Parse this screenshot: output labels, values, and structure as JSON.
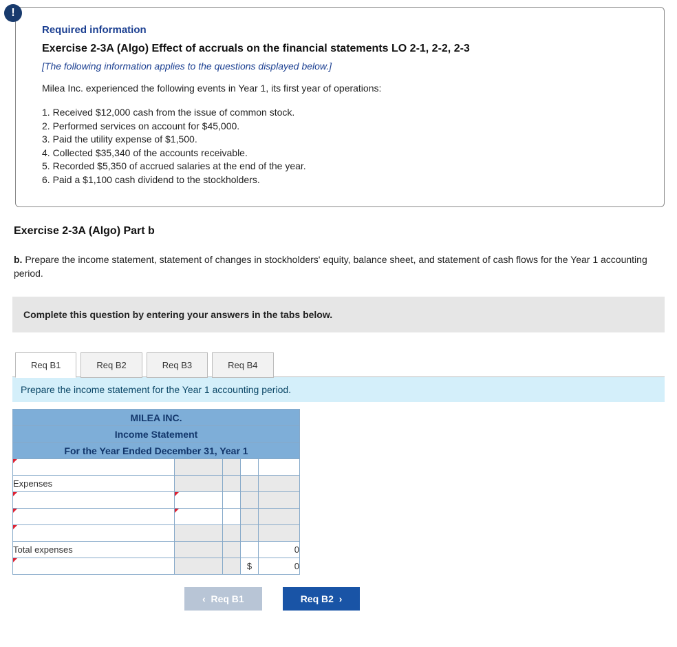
{
  "badge_char": "!",
  "required_info_label": "Required information",
  "exercise_title": "Exercise 2-3A (Algo) Effect of accruals on the financial statements LO 2-1, 2-2, 2-3",
  "italic_note": "[The following information applies to the questions displayed below.]",
  "intro_text": "Milea Inc. experienced the following events in Year 1, its first year of operations:",
  "events": [
    "1. Received $12,000 cash from the issue of common stock.",
    "2. Performed services on account for $45,000.",
    "3. Paid the utility expense of $1,500.",
    "4. Collected $35,340 of the accounts receivable.",
    "5. Recorded $5,350 of accrued salaries at the end of the year.",
    "6. Paid a $1,100 cash dividend to the stockholders."
  ],
  "part_title": "Exercise 2-3A (Algo) Part b",
  "part_desc_prefix": "b. ",
  "part_desc": "Prepare the income statement, statement of changes in stockholders' equity, balance sheet, and statement of cash flows for the Year 1 accounting period.",
  "instruction_bar": "Complete this question by entering your answers in the tabs below.",
  "tabs": [
    {
      "label": "Req B1",
      "active": true
    },
    {
      "label": "Req B2",
      "active": false
    },
    {
      "label": "Req B3",
      "active": false
    },
    {
      "label": "Req B4",
      "active": false
    }
  ],
  "tab_instruction": "Prepare the income statement for the Year 1 accounting period.",
  "worksheet": {
    "header1": "MILEA INC.",
    "header2": "Income Statement",
    "header3": "For the Year Ended December 31, Year 1",
    "header_bg": "#7eaed8",
    "border_color": "#86a9c9",
    "rows": [
      {
        "label": "",
        "tick1": true,
        "tick2": false,
        "c3_grey": true,
        "c4_grey": true,
        "c5_grey": false,
        "c6_grey": false,
        "c5": "",
        "c6": ""
      },
      {
        "label": "Expenses",
        "tick1": false,
        "tick2": false,
        "c3_grey": true,
        "c4_grey": true,
        "c5_grey": true,
        "c6_grey": true,
        "c5": "",
        "c6": ""
      },
      {
        "label": "",
        "tick1": true,
        "tick2": true,
        "c3_grey": false,
        "c4_grey": false,
        "c5_grey": true,
        "c6_grey": true,
        "c5": "",
        "c6": ""
      },
      {
        "label": "",
        "tick1": true,
        "tick2": true,
        "c3_grey": false,
        "c4_grey": false,
        "c5_grey": true,
        "c6_grey": true,
        "c5": "",
        "c6": ""
      },
      {
        "label": "",
        "tick1": true,
        "tick2": false,
        "c3_grey": true,
        "c4_grey": true,
        "c5_grey": true,
        "c6_grey": true,
        "c5": "",
        "c6": ""
      },
      {
        "label": "Total expenses",
        "tick1": false,
        "tick2": false,
        "c3_grey": true,
        "c4_grey": true,
        "c5_grey": false,
        "c6_grey": false,
        "c5": "",
        "c6": "0"
      },
      {
        "label": "",
        "tick1": true,
        "tick2": false,
        "c3_grey": true,
        "c4_grey": true,
        "c5_grey": false,
        "c6_grey": false,
        "c5": "$",
        "c6": "0"
      }
    ]
  },
  "nav": {
    "prev": "Req B1",
    "next": "Req B2"
  }
}
